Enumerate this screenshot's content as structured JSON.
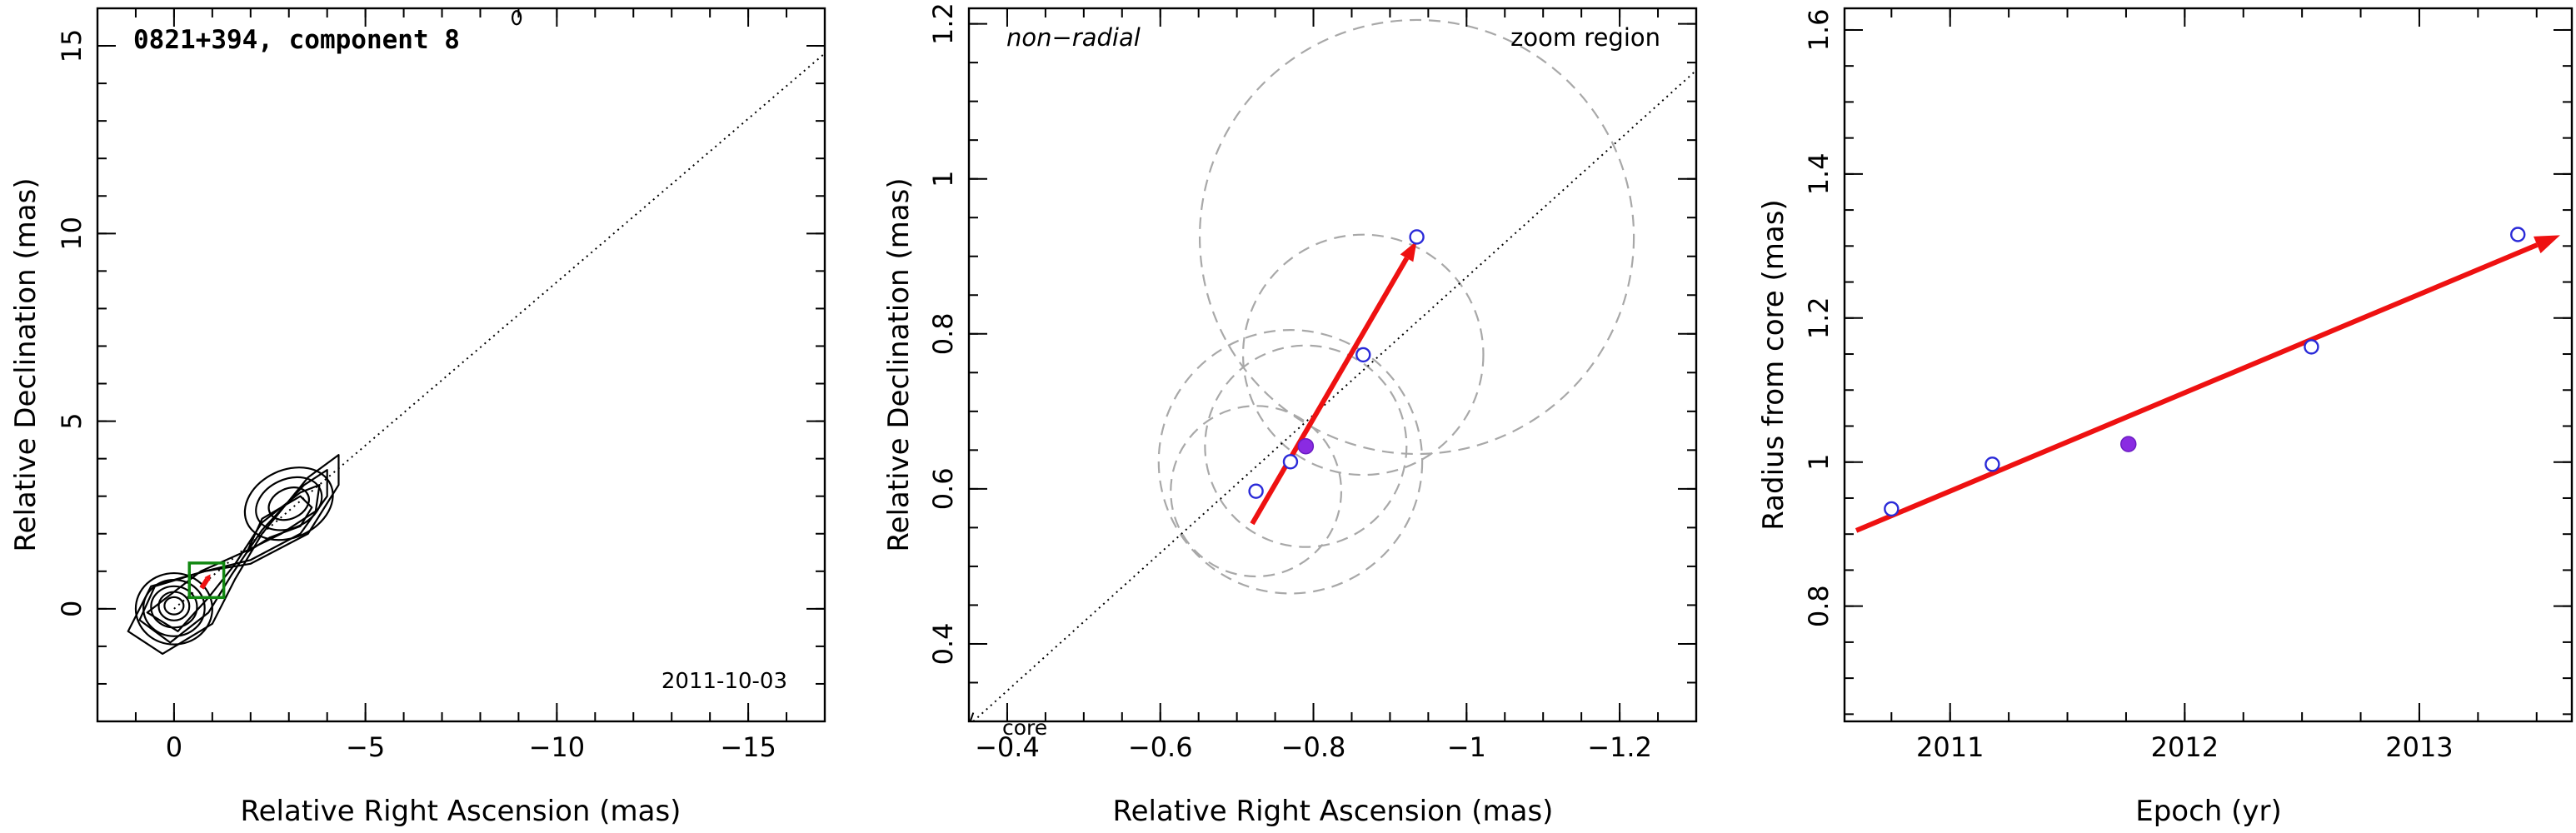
{
  "chart_data": [
    {
      "type": "contour",
      "title": "0821+394, component 8",
      "annotation": "2011-10-03",
      "xlabel": "Relative Right Ascension (mas)",
      "ylabel": "Relative Declination (mas)",
      "xlim": [
        2,
        -17
      ],
      "ylim": [
        -3,
        16
      ],
      "xticks": [
        {
          "v": 0,
          "t": "0"
        },
        {
          "v": -5,
          "t": "−5"
        },
        {
          "v": -10,
          "t": "−10"
        },
        {
          "v": -15,
          "t": "−15"
        }
      ],
      "yticks": [
        {
          "v": 0,
          "t": "0"
        },
        {
          "v": 5,
          "t": "5"
        },
        {
          "v": 10,
          "t": "10"
        },
        {
          "v": 15,
          "t": "15"
        }
      ],
      "direction_line": {
        "from": [
          0,
          0
        ],
        "to": [
          -17,
          14.8
        ]
      },
      "zoom_box": {
        "x": [
          -0.4,
          -1.3
        ],
        "y": [
          0.3,
          1.22
        ]
      },
      "contour_levels": [
        {
          "rx": 1.0,
          "ry": 0.95,
          "c": [
            0,
            0
          ]
        },
        {
          "rx": 0.8,
          "ry": 0.75,
          "c": [
            0,
            0.02
          ]
        },
        {
          "rx": 0.6,
          "ry": 0.55,
          "c": [
            0,
            0.05
          ]
        },
        {
          "rx": 0.4,
          "ry": 0.38,
          "c": [
            0,
            0.07
          ]
        },
        {
          "rx": 0.25,
          "ry": 0.23,
          "c": [
            0,
            0.08
          ]
        }
      ],
      "knot": {
        "center": [
          -3,
          2.8
        ],
        "levels": [
          [
            0.55,
            0.4
          ],
          [
            0.9,
            0.65
          ],
          [
            1.2,
            0.9
          ]
        ]
      }
    },
    {
      "type": "scatter",
      "title": "",
      "annotations": [
        "non−radial",
        "zoom region",
        "core"
      ],
      "xlabel": "Relative Right Ascension (mas)",
      "ylabel": "Relative Declination (mas)",
      "xlim": [
        -0.35,
        -1.3
      ],
      "ylim": [
        0.3,
        1.22
      ],
      "xticks": [
        {
          "v": -0.4,
          "t": "−0.4"
        },
        {
          "v": -0.6,
          "t": "−0.6"
        },
        {
          "v": -0.8,
          "t": "−0.8"
        },
        {
          "v": -1.0,
          "t": "−1"
        },
        {
          "v": -1.2,
          "t": "−1.2"
        }
      ],
      "yticks": [
        {
          "v": 0.4,
          "t": "0.4"
        },
        {
          "v": 0.6,
          "t": "0.6"
        },
        {
          "v": 0.8,
          "t": "0.8"
        },
        {
          "v": 1.0,
          "t": "1"
        },
        {
          "v": 1.2,
          "t": "1.2"
        }
      ],
      "points": [
        {
          "x": -0.725,
          "y": 0.597,
          "filled": false,
          "size": 0.11
        },
        {
          "x": -0.77,
          "y": 0.635,
          "filled": false,
          "size": 0.17
        },
        {
          "x": -0.79,
          "y": 0.655,
          "filled": true,
          "size": 0.13
        },
        {
          "x": -0.865,
          "y": 0.773,
          "filled": false,
          "size": 0.155
        },
        {
          "x": -0.935,
          "y": 0.925,
          "filled": false,
          "size": 0.28
        }
      ],
      "vector": {
        "from": [
          -0.72,
          0.555
        ],
        "to": [
          -0.935,
          0.92
        ]
      },
      "direction_line": {
        "from": [
          -0.35,
          0.295
        ],
        "to": [
          -1.3,
          1.14
        ]
      }
    },
    {
      "type": "scatter",
      "title": "",
      "xlabel": "Epoch (yr)",
      "ylabel": "Radius from core (mas)",
      "xlim": [
        2010.55,
        2013.65
      ],
      "ylim": [
        0.64,
        1.63
      ],
      "xticks": [
        {
          "v": 2011,
          "t": "2011"
        },
        {
          "v": 2012,
          "t": "2012"
        },
        {
          "v": 2013,
          "t": "2013"
        }
      ],
      "yticks": [
        {
          "v": 0.8,
          "t": "0.8"
        },
        {
          "v": 1.0,
          "t": "1"
        },
        {
          "v": 1.2,
          "t": "1.2"
        },
        {
          "v": 1.4,
          "t": "1.4"
        },
        {
          "v": 1.6,
          "t": "1.6"
        }
      ],
      "points": [
        {
          "x": 2010.75,
          "y": 0.935,
          "filled": false
        },
        {
          "x": 2011.18,
          "y": 0.997,
          "filled": false
        },
        {
          "x": 2011.76,
          "y": 1.025,
          "filled": true
        },
        {
          "x": 2012.54,
          "y": 1.16,
          "filled": false
        },
        {
          "x": 2013.42,
          "y": 1.316,
          "filled": false
        }
      ],
      "fit": {
        "from": [
          2010.6,
          0.905
        ],
        "to": [
          2013.6,
          1.315
        ]
      }
    }
  ]
}
